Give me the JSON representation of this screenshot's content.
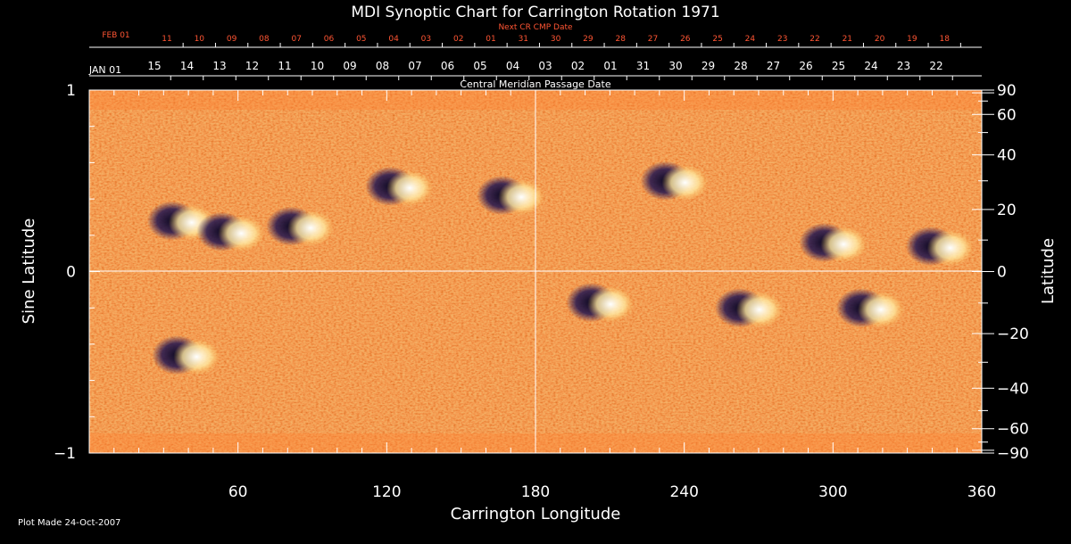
{
  "chart_data": {
    "type": "heatmap",
    "title": "MDI Synoptic Chart for Carrington Rotation 1971",
    "xlabel": "Carrington Longitude",
    "ylabel_left": "Sine Latitude",
    "ylabel_right": "Latitude",
    "xlim": [
      0,
      360
    ],
    "ylim_sine": [
      -1,
      1
    ],
    "x_ticks": [
      "60",
      "120",
      "180",
      "240",
      "300",
      "360"
    ],
    "y_left_ticks": [
      {
        "value": 1,
        "label": "1"
      },
      {
        "value": 0,
        "label": "0"
      },
      {
        "value": -1,
        "label": "−1"
      }
    ],
    "y_right_ticks": [
      {
        "deg": 90,
        "label": "90"
      },
      {
        "deg": 60,
        "label": "60"
      },
      {
        "deg": 40,
        "label": "40"
      },
      {
        "deg": 20,
        "label": "20"
      },
      {
        "deg": 0,
        "label": "0"
      },
      {
        "deg": -20,
        "label": "−20"
      },
      {
        "deg": -40,
        "label": "−40"
      },
      {
        "deg": -60,
        "label": "−60"
      },
      {
        "deg": -90,
        "label": "−90"
      }
    ],
    "cmp_axis": {
      "label": "Central Meridian Passage Date",
      "start_label": "JAN 01",
      "labels": [
        "15",
        "14",
        "13",
        "12",
        "11",
        "10",
        "09",
        "08",
        "07",
        "06",
        "05",
        "04",
        "03",
        "02",
        "01",
        "31",
        "30",
        "29",
        "28",
        "27",
        "26",
        "25",
        "24",
        "23",
        "22"
      ]
    },
    "next_cr_axis": {
      "label": "Next CR CMP Date",
      "start_label": "FEB 01",
      "labels": [
        "11",
        "10",
        "09",
        "08",
        "07",
        "06",
        "05",
        "04",
        "03",
        "02",
        "01",
        "31",
        "30",
        "29",
        "28",
        "27",
        "26",
        "25",
        "24",
        "23",
        "22",
        "21",
        "20",
        "19",
        "18"
      ]
    },
    "colors": {
      "background_field": "#ee5a10",
      "positive": "#ffffff",
      "negative": "#1a1240",
      "axis_text": "#ffffff",
      "next_cr_text": "#ff5533"
    },
    "active_regions": [
      {
        "lon": 37,
        "sinlat": 0.28,
        "polarity": "bipole"
      },
      {
        "lon": 57,
        "sinlat": 0.22,
        "polarity": "bipole"
      },
      {
        "lon": 85,
        "sinlat": 0.25,
        "polarity": "bipole"
      },
      {
        "lon": 125,
        "sinlat": 0.47,
        "polarity": "bipole"
      },
      {
        "lon": 170,
        "sinlat": 0.42,
        "polarity": "bipole"
      },
      {
        "lon": 206,
        "sinlat": -0.17,
        "polarity": "bipole"
      },
      {
        "lon": 236,
        "sinlat": 0.5,
        "polarity": "bipole"
      },
      {
        "lon": 266,
        "sinlat": -0.2,
        "polarity": "bipole"
      },
      {
        "lon": 300,
        "sinlat": 0.16,
        "polarity": "bipole"
      },
      {
        "lon": 343,
        "sinlat": 0.14,
        "polarity": "bipole"
      },
      {
        "lon": 39,
        "sinlat": -0.46,
        "polarity": "bipole"
      },
      {
        "lon": 315,
        "sinlat": -0.2,
        "polarity": "bipole"
      }
    ]
  },
  "footer": {
    "plot_made": "Plot Made 24-Oct-2007"
  }
}
